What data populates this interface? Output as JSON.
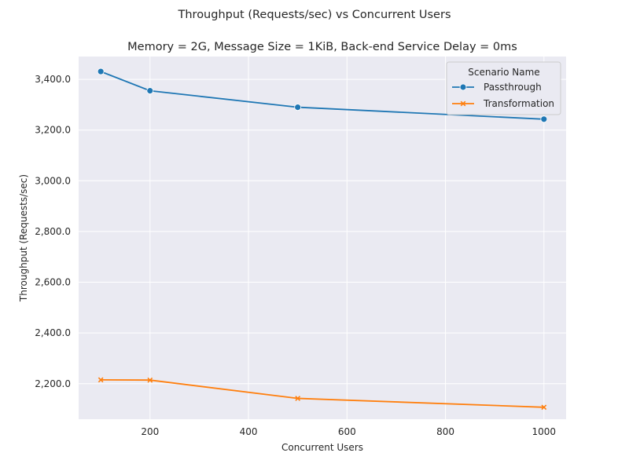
{
  "chart_data": {
    "type": "line",
    "title": "Throughput (Requests/sec) vs Concurrent Users",
    "subtitle": "Memory = 2G, Message Size = 1KiB, Back-end Service Delay = 0ms",
    "xlabel": "Concurrent Users",
    "ylabel": "Throughput (Requests/sec)",
    "x": [
      100,
      200,
      500,
      1000
    ],
    "xlim": [
      55,
      1045
    ],
    "ylim": [
      2060,
      3490
    ],
    "xticks": [
      {
        "value": 200,
        "label": "200"
      },
      {
        "value": 400,
        "label": "400"
      },
      {
        "value": 600,
        "label": "600"
      },
      {
        "value": 800,
        "label": "800"
      },
      {
        "value": 1000,
        "label": "1000"
      }
    ],
    "yticks": [
      {
        "value": 2200,
        "label": "2,200.0"
      },
      {
        "value": 2400,
        "label": "2,400.0"
      },
      {
        "value": 2600,
        "label": "2,600.0"
      },
      {
        "value": 2800,
        "label": "2,800.0"
      },
      {
        "value": 3000,
        "label": "3,000.0"
      },
      {
        "value": 3200,
        "label": "3,200.0"
      },
      {
        "value": 3400,
        "label": "3,400.0"
      }
    ],
    "grid": true,
    "legend": {
      "title": "Scenario Name",
      "placement": "top-right"
    },
    "series": [
      {
        "name": "Passthrough",
        "marker": "circle",
        "color": "#1f77b4",
        "values": [
          3431,
          3355,
          3290,
          3243
        ]
      },
      {
        "name": "Transformation",
        "marker": "x",
        "color": "#ff7f0e",
        "values": [
          2215,
          2214,
          2142,
          2107
        ]
      }
    ],
    "colors": {
      "plot_background": "#eaeaf2",
      "grid": "#ffffff",
      "text": "#262626"
    }
  }
}
